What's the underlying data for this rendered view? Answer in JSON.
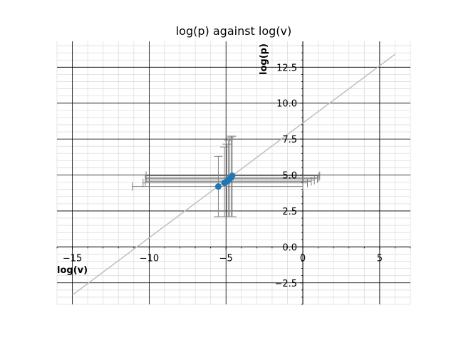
{
  "chart_data": {
    "type": "scatter",
    "title": "log(p) against log(v)",
    "xlabel": "log(v)",
    "ylabel": "log(p)",
    "xlim": [
      -16,
      7
    ],
    "ylim": [
      -4.0,
      14.3
    ],
    "x_ticks": [
      -15,
      -10,
      -5,
      0,
      5
    ],
    "x_tick_labels": [
      "−15",
      "−10",
      "−5",
      "0",
      "5"
    ],
    "y_ticks": [
      -2.5,
      0.0,
      2.5,
      5.0,
      7.5,
      10.0,
      12.5
    ],
    "y_tick_labels": [
      "−2.5",
      "0.0",
      "2.5",
      "5.0",
      "7.5",
      "10.0",
      "12.5"
    ],
    "grid": true,
    "spines": "centered at origin",
    "colors": {
      "points": "#1f77b4",
      "error_bars": "#808080",
      "fit_line": "#bfbfbf",
      "major_grid": "#000000",
      "minor_grid": "#dddddd"
    },
    "points": [
      {
        "x": -5.5,
        "y": 4.2,
        "xerr": [
          5.6,
          5.5
        ],
        "yerr": [
          2.1,
          2.1
        ]
      },
      {
        "x": -5.1,
        "y": 4.45,
        "xerr": [
          5.3,
          5.4
        ],
        "yerr": [
          2.35,
          2.5
        ]
      },
      {
        "x": -4.95,
        "y": 4.55,
        "xerr": [
          5.3,
          5.5
        ],
        "yerr": [
          2.45,
          2.6
        ]
      },
      {
        "x": -4.85,
        "y": 4.65,
        "xerr": [
          5.4,
          5.6
        ],
        "yerr": [
          2.55,
          2.75
        ]
      },
      {
        "x": -4.75,
        "y": 4.75,
        "xerr": [
          5.5,
          5.7
        ],
        "yerr": [
          2.65,
          2.85
        ]
      },
      {
        "x": -4.65,
        "y": 4.85,
        "xerr": [
          5.55,
          5.7
        ],
        "yerr": [
          2.75,
          2.85
        ]
      },
      {
        "x": -4.6,
        "y": 4.95,
        "xerr": [
          5.6,
          5.7
        ],
        "yerr": [
          2.85,
          2.75
        ]
      }
    ],
    "fit_line": {
      "x": [
        -15,
        6
      ],
      "y": [
        -3.35,
        13.4
      ]
    }
  }
}
